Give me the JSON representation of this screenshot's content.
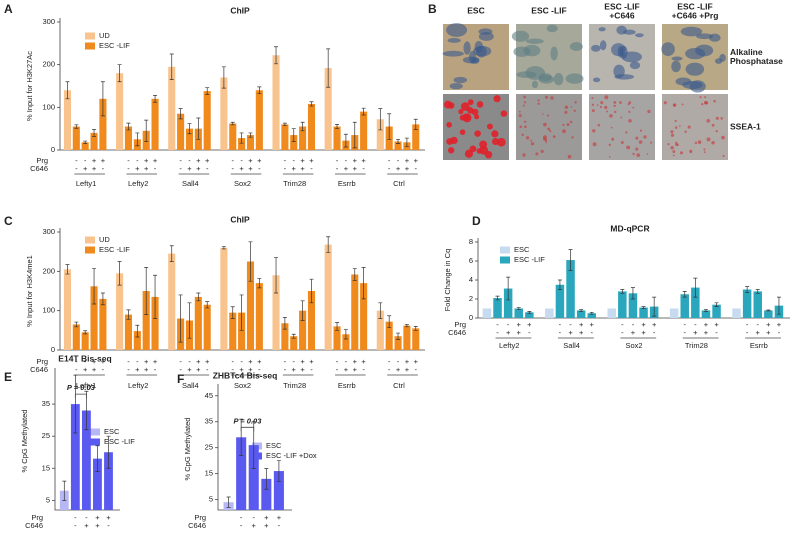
{
  "chart_data": [
    {
      "type": "bar",
      "panel": "A",
      "title": "ChIP",
      "ylabel": "% Input for H3K27Ac",
      "ylim": [
        0,
        300
      ],
      "yticks": [
        0,
        100,
        200,
        300
      ],
      "categories": [
        "Lefty1",
        "Lefty2",
        "Sall4",
        "Sox2",
        "Trim28",
        "Esrrb",
        "Ctrl"
      ],
      "condition_labels": [
        "Prg",
        "C646"
      ],
      "legend": [
        {
          "name": "UD",
          "color": "#f9c38e"
        },
        {
          "name": "ESC -LIF",
          "color": "#f08a1c"
        }
      ],
      "series": [
        {
          "color": "#f9c38e",
          "values": [
            140,
            180,
            195,
            170,
            222,
            192,
            72
          ],
          "errors": [
            20,
            20,
            30,
            25,
            20,
            45,
            25
          ]
        },
        {
          "color": "#f08a1c",
          "prg": "-",
          "c646": "-",
          "values": [
            55,
            55,
            85,
            62,
            60,
            55,
            55
          ],
          "errors": [
            4,
            8,
            12,
            3,
            3,
            5,
            30
          ]
        },
        {
          "color": "#f08a1c",
          "prg": "-",
          "c646": "+",
          "values": [
            18,
            25,
            50,
            28,
            35,
            22,
            20
          ],
          "errors": [
            3,
            15,
            12,
            12,
            15,
            15,
            5
          ]
        },
        {
          "color": "#f08a1c",
          "prg": "+",
          "c646": "+",
          "values": [
            40,
            45,
            50,
            35,
            55,
            35,
            18
          ],
          "errors": [
            8,
            25,
            25,
            5,
            10,
            30,
            10
          ]
        },
        {
          "color": "#f08a1c",
          "prg": "+",
          "c646": "-",
          "values": [
            120,
            120,
            138,
            140,
            108,
            90,
            60
          ],
          "errors": [
            40,
            8,
            8,
            8,
            5,
            8,
            12
          ]
        }
      ]
    },
    {
      "type": "bar",
      "panel": "C",
      "title": "ChIP",
      "ylabel": "% Input for H3K4me1",
      "ylim": [
        0,
        300
      ],
      "yticks": [
        0,
        100,
        200,
        300
      ],
      "categories": [
        "Lefty1",
        "Lefty2",
        "Sall4",
        "Sox2",
        "Trim28",
        "Esrrb",
        "Ctrl"
      ],
      "condition_labels": [
        "Prg",
        "C646"
      ],
      "legend": [
        {
          "name": "UD",
          "color": "#f9c38e"
        },
        {
          "name": "ESC -LIF",
          "color": "#f08a1c"
        }
      ],
      "series": [
        {
          "color": "#f9c38e",
          "values": [
            205,
            195,
            245,
            260,
            190,
            268,
            100
          ],
          "errors": [
            12,
            30,
            20,
            3,
            45,
            20,
            20
          ]
        },
        {
          "color": "#f08a1c",
          "prg": "-",
          "c646": "-",
          "values": [
            65,
            90,
            80,
            95,
            68,
            60,
            72
          ],
          "errors": [
            6,
            12,
            60,
            15,
            15,
            10,
            15
          ]
        },
        {
          "color": "#f08a1c",
          "prg": "-",
          "c646": "+",
          "values": [
            45,
            48,
            75,
            95,
            35,
            40,
            35
          ],
          "errors": [
            4,
            15,
            45,
            45,
            5,
            12,
            8
          ]
        },
        {
          "color": "#f08a1c",
          "prg": "+",
          "c646": "+",
          "values": [
            162,
            150,
            135,
            225,
            100,
            192,
            62
          ],
          "errors": [
            45,
            60,
            10,
            50,
            25,
            15,
            3
          ]
        },
        {
          "color": "#f08a1c",
          "prg": "+",
          "c646": "-",
          "values": [
            130,
            135,
            115,
            170,
            150,
            170,
            55
          ],
          "errors": [
            15,
            55,
            8,
            12,
            30,
            40,
            5
          ]
        }
      ]
    },
    {
      "type": "bar",
      "panel": "D",
      "title": "MD-qPCR",
      "ylabel": "Fold Change in Cq",
      "ylim": [
        0,
        8
      ],
      "yticks": [
        0,
        2,
        4,
        6,
        8
      ],
      "categories": [
        "Lefty2",
        "Sall4",
        "Sox2",
        "Trim28",
        "Esrrb"
      ],
      "condition_labels": [
        "Prg",
        "C646"
      ],
      "legend": [
        {
          "name": "ESC",
          "color": "#c6dbf0"
        },
        {
          "name": "ESC -LIF",
          "color": "#2aa6bd"
        }
      ],
      "series": [
        {
          "color": "#c6dbf0",
          "values": [
            1,
            1,
            1,
            1,
            1
          ]
        },
        {
          "color": "#2aa6bd",
          "prg": "-",
          "c646": "-",
          "values": [
            2.1,
            3.5,
            2.8,
            2.5,
            3.0
          ],
          "errors": [
            0.2,
            0.5,
            0.2,
            0.3,
            0.3
          ]
        },
        {
          "color": "#2aa6bd",
          "prg": "-",
          "c646": "+",
          "values": [
            3.1,
            6.1,
            2.6,
            3.2,
            2.8
          ],
          "errors": [
            1.2,
            1.1,
            0.6,
            1.0,
            0.2
          ]
        },
        {
          "color": "#2aa6bd",
          "prg": "+",
          "c646": "+",
          "values": [
            1.0,
            0.8,
            1.1,
            0.8,
            0.8
          ],
          "errors": [
            0.1,
            0.1,
            0.1,
            0.1,
            0.05
          ]
        },
        {
          "color": "#2aa6bd",
          "prg": "+",
          "c646": "-",
          "values": [
            0.6,
            0.5,
            1.2,
            1.4,
            1.3
          ],
          "errors": [
            0.1,
            0.1,
            1.0,
            0.2,
            0.9
          ]
        }
      ]
    },
    {
      "type": "bar",
      "panel": "E",
      "title": "E14T Bis-seq",
      "ylabel": "% CpG Methylated",
      "ylim": [
        2,
        45
      ],
      "yticks": [
        5,
        15,
        25,
        35
      ],
      "categories": [
        null
      ],
      "condition_labels": [
        "Prg",
        "C646"
      ],
      "annotation": "P = 0.03",
      "legend": [
        {
          "name": "ESC",
          "color": "#b7b7f5"
        },
        {
          "name": "ESC -LIF",
          "color": "#5a5af0"
        }
      ],
      "series": [
        {
          "color": "#b7b7f5",
          "values": [
            8
          ],
          "errors": [
            3
          ]
        },
        {
          "color": "#5a5af0",
          "prg": "-",
          "c646": "-",
          "values": [
            35
          ],
          "errors": [
            9
          ]
        },
        {
          "color": "#5a5af0",
          "prg": "-",
          "c646": "+",
          "values": [
            33
          ],
          "errors": [
            6
          ]
        },
        {
          "color": "#5a5af0",
          "prg": "+",
          "c646": "+",
          "values": [
            18
          ],
          "errors": [
            4
          ]
        },
        {
          "color": "#5a5af0",
          "prg": "+",
          "c646": "-",
          "values": [
            20
          ],
          "errors": [
            5
          ]
        }
      ]
    },
    {
      "type": "bar",
      "panel": "F",
      "title": "ZHBTc4 Bis-seq",
      "ylabel": "% CpG Methylated",
      "ylim": [
        1,
        48
      ],
      "yticks": [
        5,
        15,
        25,
        35,
        45
      ],
      "categories": [
        null
      ],
      "condition_labels": [
        "Prg",
        "C646"
      ],
      "annotation": "P = 0.03",
      "legend": [
        {
          "name": "ESC",
          "color": "#b7b7f5"
        },
        {
          "name": "ESC -LIF +Dox",
          "color": "#5a5af0"
        }
      ],
      "series": [
        {
          "color": "#b7b7f5",
          "values": [
            4
          ],
          "errors": [
            2
          ]
        },
        {
          "color": "#5a5af0",
          "prg": "-",
          "c646": "-",
          "values": [
            29
          ],
          "errors": [
            7
          ]
        },
        {
          "color": "#5a5af0",
          "prg": "-",
          "c646": "+",
          "values": [
            26
          ],
          "errors": [
            9
          ]
        },
        {
          "color": "#5a5af0",
          "prg": "+",
          "c646": "+",
          "values": [
            13
          ],
          "errors": [
            4
          ]
        },
        {
          "color": "#5a5af0",
          "prg": "+",
          "c646": "-",
          "values": [
            16
          ],
          "errors": [
            4
          ]
        }
      ]
    }
  ],
  "image_panel": {
    "panel": "B",
    "columns": [
      [
        "ESC"
      ],
      [
        "ESC -LIF"
      ],
      [
        "ESC -LIF",
        "+C646"
      ],
      [
        "ESC -LIF",
        "+C646 +Prg"
      ]
    ],
    "rows": [
      [
        "Alkaline",
        "Phosphatase"
      ],
      [
        "SSEA-1"
      ]
    ]
  }
}
